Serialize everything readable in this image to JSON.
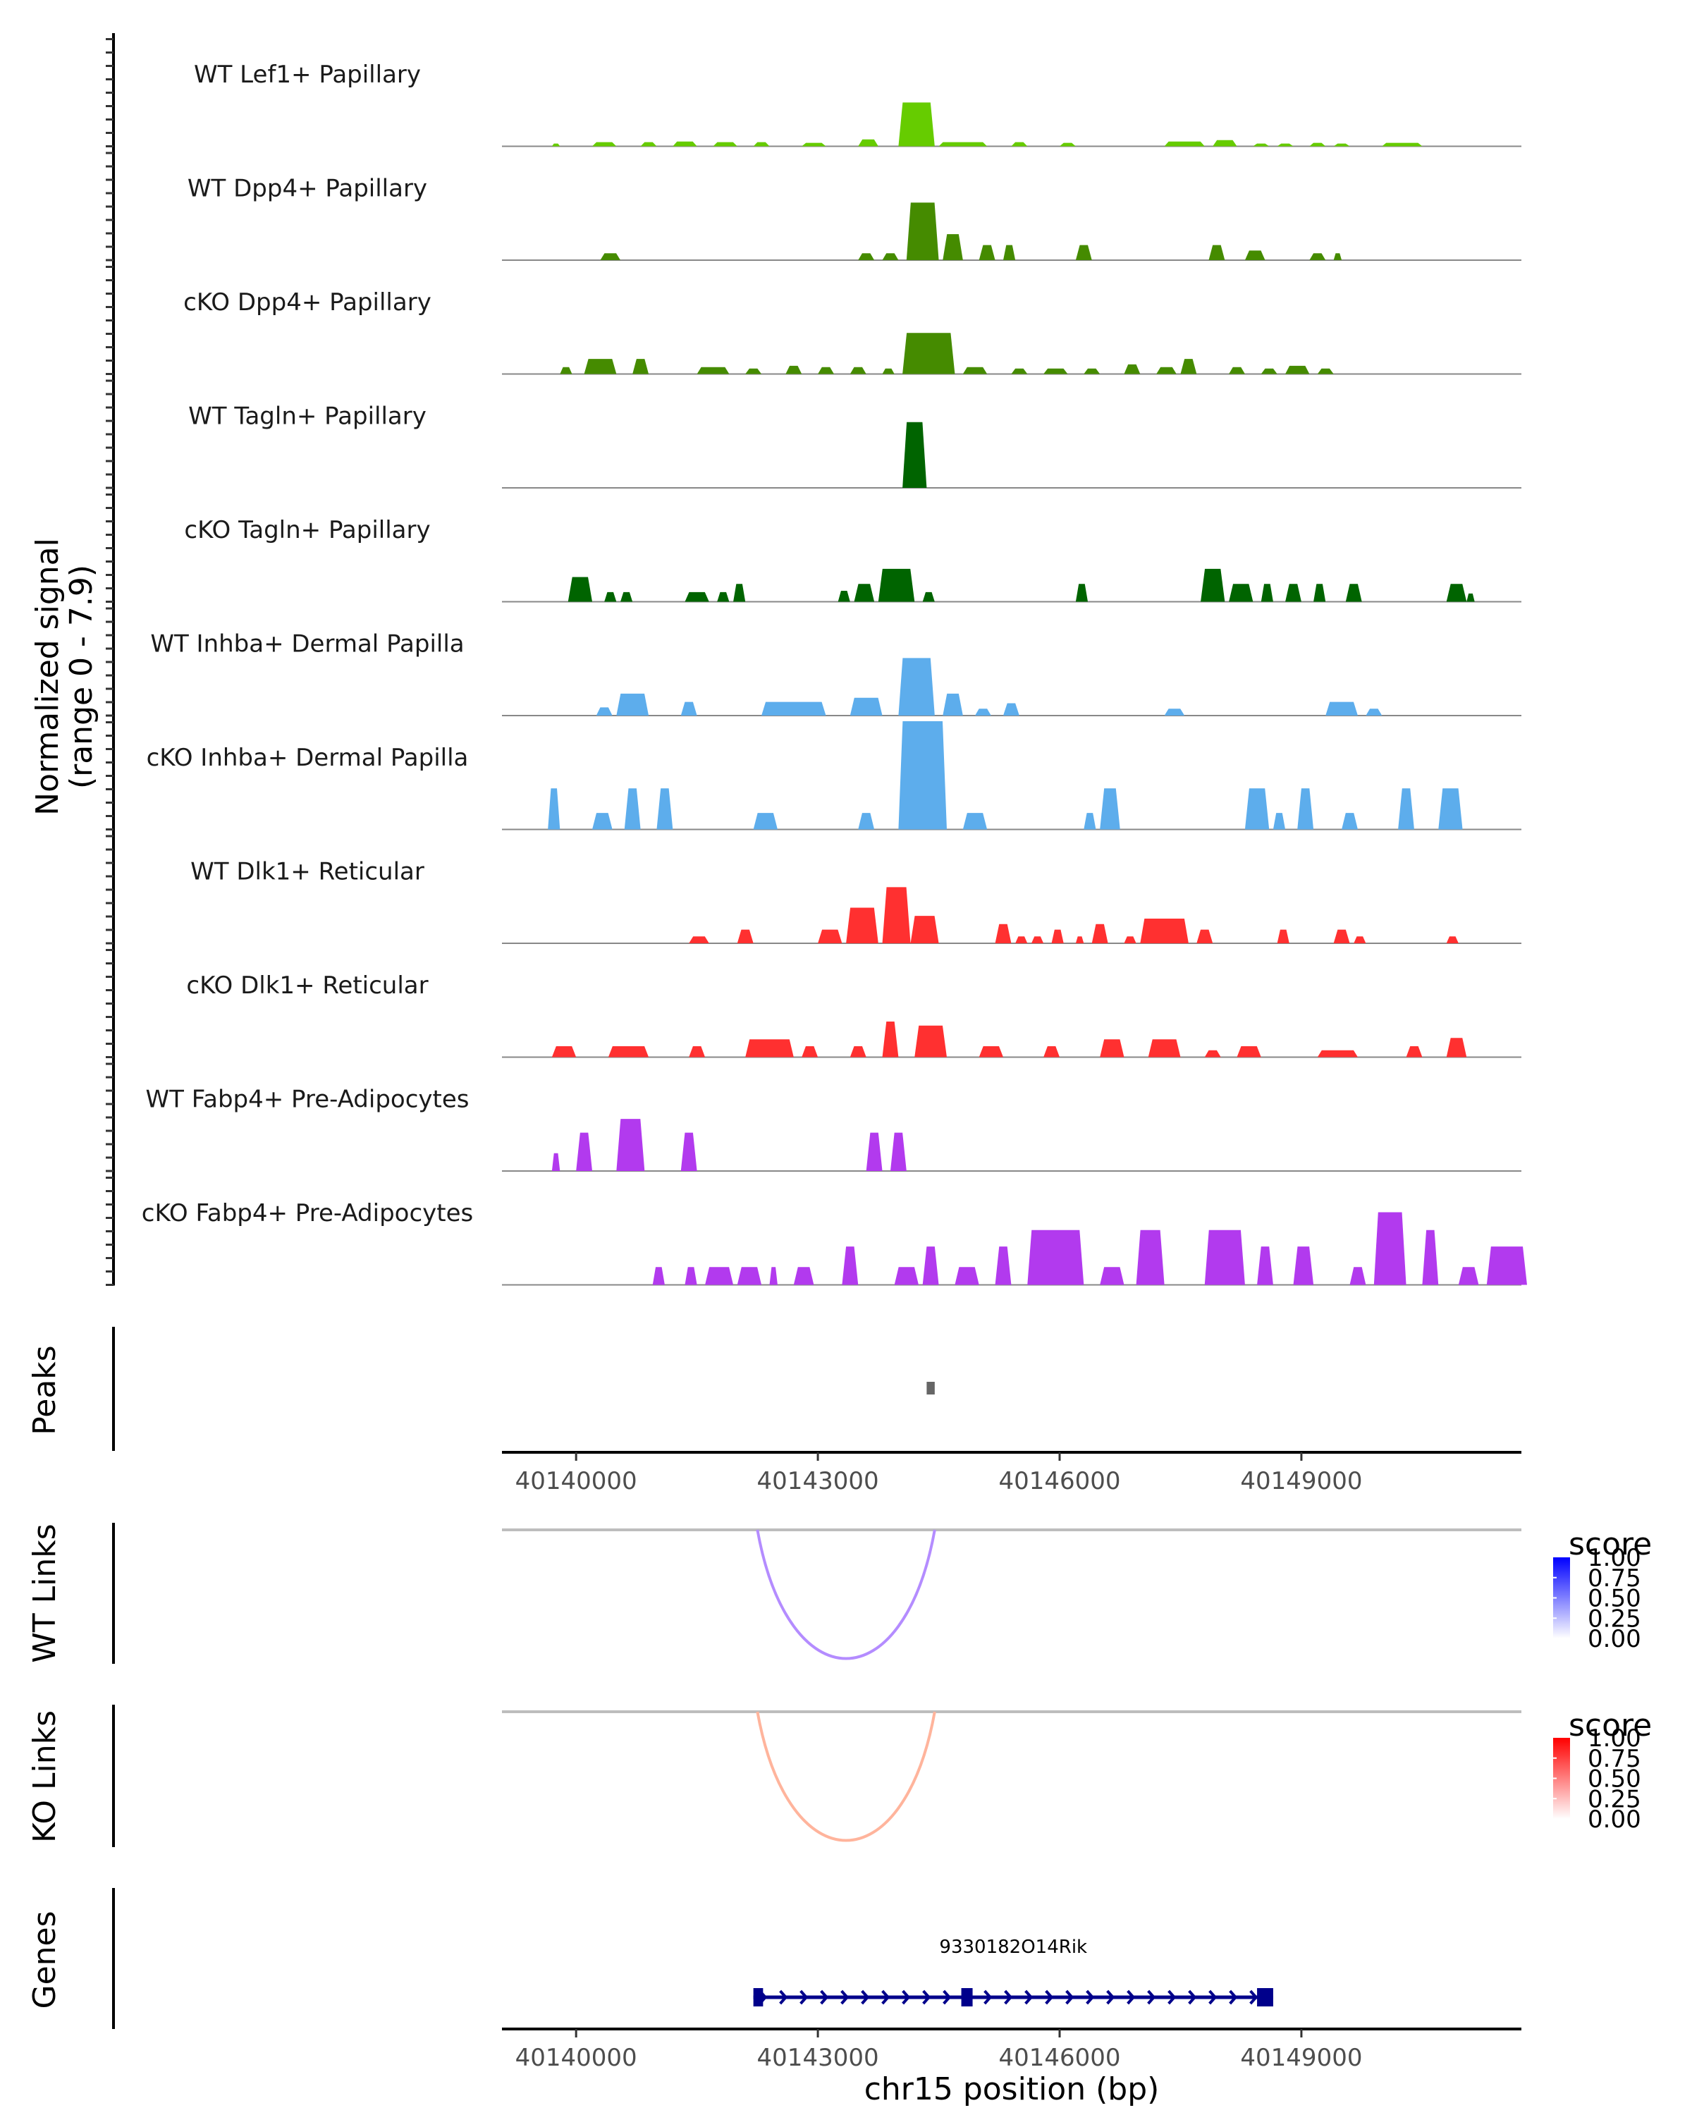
{
  "chart_data": {
    "type": "area",
    "title": "",
    "region": {
      "chromosome": "chr15",
      "xlim": [
        40139080,
        40151730
      ]
    },
    "signal_panel": {
      "ylabel_line1": "Normalized signal",
      "ylabel_line2": "(range 0 - 7.9)",
      "ylim": [
        0,
        7.9
      ],
      "tracks": [
        {
          "label": "WT Lef1+ Papillary",
          "color": "#66CC00",
          "peaks": [
            [
              40139700,
              40139800,
              0.2
            ],
            [
              40140200,
              40140500,
              0.3
            ],
            [
              40140800,
              40141000,
              0.3
            ],
            [
              40141200,
              40141500,
              0.35
            ],
            [
              40141700,
              40142000,
              0.3
            ],
            [
              40142200,
              40142400,
              0.3
            ],
            [
              40142800,
              40143100,
              0.25
            ],
            [
              40143500,
              40143750,
              0.5
            ],
            [
              40144000,
              40144450,
              3.2
            ],
            [
              40144500,
              40145100,
              0.3
            ],
            [
              40145400,
              40145600,
              0.3
            ],
            [
              40146000,
              40146200,
              0.25
            ],
            [
              40147300,
              40147800,
              0.35
            ],
            [
              40147900,
              40148200,
              0.45
            ],
            [
              40148400,
              40148600,
              0.2
            ],
            [
              40148700,
              40148900,
              0.2
            ],
            [
              40149100,
              40149300,
              0.25
            ],
            [
              40149400,
              40149600,
              0.2
            ],
            [
              40150000,
              40150500,
              0.25
            ]
          ]
        },
        {
          "label": "WT Dpp4+ Papillary",
          "color": "#458B00",
          "peaks": [
            [
              40140300,
              40140550,
              0.5
            ],
            [
              40143500,
              40143700,
              0.5
            ],
            [
              40143800,
              40144000,
              0.5
            ],
            [
              40144100,
              40144500,
              4.2
            ],
            [
              40144550,
              40144800,
              1.9
            ],
            [
              40145000,
              40145200,
              1.1
            ],
            [
              40145300,
              40145450,
              1.1
            ],
            [
              40146200,
              40146400,
              1.1
            ],
            [
              40147850,
              40148050,
              1.1
            ],
            [
              40148300,
              40148550,
              0.7
            ],
            [
              40149100,
              40149300,
              0.5
            ],
            [
              40149400,
              40149500,
              0.5
            ]
          ]
        },
        {
          "label": "cKO Dpp4+ Papillary",
          "color": "#458B00",
          "peaks": [
            [
              40139800,
              40139950,
              0.5
            ],
            [
              40140100,
              40140500,
              1.1
            ],
            [
              40140700,
              40140900,
              1.1
            ],
            [
              40141500,
              40141900,
              0.5
            ],
            [
              40142100,
              40142300,
              0.4
            ],
            [
              40142600,
              40142800,
              0.6
            ],
            [
              40143000,
              40143200,
              0.5
            ],
            [
              40143400,
              40143600,
              0.5
            ],
            [
              40143800,
              40143950,
              0.4
            ],
            [
              40144050,
              40144700,
              3.0
            ],
            [
              40144800,
              40145100,
              0.5
            ],
            [
              40145400,
              40145600,
              0.4
            ],
            [
              40145800,
              40146100,
              0.4
            ],
            [
              40146300,
              40146500,
              0.4
            ],
            [
              40146800,
              40147000,
              0.7
            ],
            [
              40147200,
              40147450,
              0.5
            ],
            [
              40147500,
              40147700,
              1.1
            ],
            [
              40148100,
              40148300,
              0.5
            ],
            [
              40148500,
              40148700,
              0.4
            ],
            [
              40148800,
              40149100,
              0.6
            ],
            [
              40149200,
              40149400,
              0.4
            ]
          ]
        },
        {
          "label": "WT Tagln+ Papillary",
          "color": "#006400",
          "peaks": [
            [
              40144050,
              40144350,
              4.8
            ]
          ]
        },
        {
          "label": "cKO Tagln+ Papillary",
          "color": "#006400",
          "peaks": [
            [
              40139900,
              40140200,
              1.8
            ],
            [
              40140350,
              40140500,
              0.7
            ],
            [
              40140550,
              40140700,
              0.7
            ],
            [
              40141350,
              40141650,
              0.7
            ],
            [
              40141750,
              40141900,
              0.7
            ],
            [
              40141950,
              40142100,
              1.3
            ],
            [
              40143250,
              40143400,
              0.8
            ],
            [
              40143450,
              40143700,
              1.3
            ],
            [
              40143750,
              40144200,
              2.4
            ],
            [
              40144300,
              40144450,
              0.7
            ],
            [
              40146200,
              40146350,
              1.3
            ],
            [
              40147750,
              40148050,
              2.4
            ],
            [
              40148100,
              40148400,
              1.3
            ],
            [
              40148500,
              40148650,
              1.3
            ],
            [
              40148800,
              40149000,
              1.3
            ],
            [
              40149150,
              40149300,
              1.3
            ],
            [
              40149550,
              40149750,
              1.3
            ],
            [
              40150800,
              40151050,
              1.3
            ],
            [
              40151050,
              40151150,
              0.6
            ]
          ]
        },
        {
          "label": "WT Inhba+ Dermal Papilla",
          "color": "#5DADEC",
          "peaks": [
            [
              40140250,
              40140450,
              0.6
            ],
            [
              40140500,
              40140900,
              1.6
            ],
            [
              40141300,
              40141500,
              1.0
            ],
            [
              40142300,
              40143100,
              1.0
            ],
            [
              40143400,
              40143800,
              1.3
            ],
            [
              40144000,
              40144450,
              4.2
            ],
            [
              40144550,
              40144800,
              1.6
            ],
            [
              40144950,
              40145150,
              0.5
            ],
            [
              40145300,
              40145500,
              0.9
            ],
            [
              40147300,
              40147550,
              0.5
            ],
            [
              40149300,
              40149700,
              1.0
            ],
            [
              40149800,
              40150000,
              0.5
            ]
          ]
        },
        {
          "label": "cKO Inhba+ Dermal Papilla",
          "color": "#5DADEC",
          "peaks": [
            [
              40139650,
              40139800,
              3.0
            ],
            [
              40140200,
              40140450,
              1.2
            ],
            [
              40140600,
              40140800,
              3.0
            ],
            [
              40141000,
              40141200,
              3.0
            ],
            [
              40142200,
              40142500,
              1.2
            ],
            [
              40143500,
              40143700,
              1.2
            ],
            [
              40144000,
              40144600,
              7.9
            ],
            [
              40144800,
              40145100,
              1.2
            ],
            [
              40146300,
              40146450,
              1.2
            ],
            [
              40146500,
              40146750,
              3.0
            ],
            [
              40148300,
              40148600,
              3.0
            ],
            [
              40148650,
              40148800,
              1.2
            ],
            [
              40148950,
              40149150,
              3.0
            ],
            [
              40149500,
              40149700,
              1.2
            ],
            [
              40150200,
              40150400,
              3.0
            ],
            [
              40150700,
              40151000,
              3.0
            ]
          ]
        },
        {
          "label": "WT Dlk1+ Reticular",
          "color": "#FF3030",
          "peaks": [
            [
              40141400,
              40141650,
              0.5
            ],
            [
              40142000,
              40142200,
              1.0
            ],
            [
              40143000,
              40143300,
              1.0
            ],
            [
              40143350,
              40143750,
              2.6
            ],
            [
              40143800,
              40144150,
              4.1
            ],
            [
              40144150,
              40144500,
              2.0
            ],
            [
              40145200,
              40145400,
              1.4
            ],
            [
              40145450,
              40145600,
              0.5
            ],
            [
              40145650,
              40145800,
              0.5
            ],
            [
              40145900,
              40146050,
              1.0
            ],
            [
              40146200,
              40146300,
              0.5
            ],
            [
              40146400,
              40146600,
              1.4
            ],
            [
              40146800,
              40146950,
              0.5
            ],
            [
              40147000,
              40147600,
              1.8
            ],
            [
              40147700,
              40147900,
              1.0
            ],
            [
              40148700,
              40148850,
              1.0
            ],
            [
              40149400,
              40149600,
              1.0
            ],
            [
              40149650,
              40149800,
              0.5
            ],
            [
              40150800,
              40150950,
              0.5
            ]
          ]
        },
        {
          "label": "cKO Dlk1+ Reticular",
          "color": "#FF3030",
          "peaks": [
            [
              40139700,
              40140000,
              0.8
            ],
            [
              40140400,
              40140900,
              0.8
            ],
            [
              40141400,
              40141600,
              0.8
            ],
            [
              40142100,
              40142700,
              1.3
            ],
            [
              40142800,
              40143000,
              0.8
            ],
            [
              40143400,
              40143600,
              0.8
            ],
            [
              40143800,
              40144000,
              2.6
            ],
            [
              40144200,
              40144600,
              2.3
            ],
            [
              40145000,
              40145300,
              0.8
            ],
            [
              40145800,
              40146000,
              0.8
            ],
            [
              40146500,
              40146800,
              1.3
            ],
            [
              40147100,
              40147500,
              1.3
            ],
            [
              40147800,
              40148000,
              0.5
            ],
            [
              40148200,
              40148500,
              0.8
            ],
            [
              40149200,
              40149700,
              0.5
            ],
            [
              40150300,
              40150500,
              0.8
            ],
            [
              40150800,
              40151050,
              1.4
            ]
          ]
        },
        {
          "label": "WT Fabp4+ Pre-Adipocytes",
          "color": "#B23AEE",
          "peaks": [
            [
              40139700,
              40139800,
              1.3
            ],
            [
              40140000,
              40140200,
              2.8
            ],
            [
              40140500,
              40140850,
              3.8
            ],
            [
              40141300,
              40141500,
              2.8
            ],
            [
              40143600,
              40143800,
              2.8
            ],
            [
              40143900,
              40144100,
              2.8
            ]
          ]
        },
        {
          "label": "cKO Fabp4+ Pre-Adipocytes",
          "color": "#B23AEE",
          "peaks": [
            [
              40140950,
              40141100,
              1.3
            ],
            [
              40141350,
              40141500,
              1.3
            ],
            [
              40141600,
              40141950,
              1.3
            ],
            [
              40142000,
              40142300,
              1.3
            ],
            [
              40142400,
              40142500,
              1.3
            ],
            [
              40142700,
              40142950,
              1.3
            ],
            [
              40143300,
              40143500,
              2.8
            ],
            [
              40143950,
              40144250,
              1.3
            ],
            [
              40144300,
              40144500,
              2.8
            ],
            [
              40144700,
              40145000,
              1.3
            ],
            [
              40145200,
              40145400,
              2.8
            ],
            [
              40145600,
              40146300,
              4.0
            ],
            [
              40146500,
              40146800,
              1.3
            ],
            [
              40146950,
              40147300,
              4.0
            ],
            [
              40147800,
              40148300,
              4.0
            ],
            [
              40148450,
              40148650,
              2.8
            ],
            [
              40148900,
              40149150,
              2.8
            ],
            [
              40149600,
              40149800,
              1.3
            ],
            [
              40149900,
              40150300,
              5.3
            ],
            [
              40150500,
              40150700,
              4.0
            ],
            [
              40150950,
              40151200,
              1.3
            ],
            [
              40151300,
              40151800,
              2.8
            ]
          ]
        }
      ]
    },
    "peaks_panel": {
      "label": "Peaks",
      "peaks": [
        [
          40144350,
          40144450
        ]
      ],
      "color": "#666666"
    },
    "x_axis_top": {
      "ticks": [
        40140000,
        40143000,
        40146000,
        40149000
      ],
      "tick_labels": [
        "40140000",
        "40143000",
        "40146000",
        "40149000"
      ]
    },
    "links_panels": [
      {
        "label": "WT Links",
        "links": [
          {
            "start": 40142250,
            "end": 40144450,
            "score": 0.35
          }
        ],
        "legend": {
          "title": "score",
          "ticks": [
            "1.00",
            "0.75",
            "0.50",
            "0.25",
            "0.00"
          ],
          "low_color": "#FFFFFF",
          "high_color": "#0000FF",
          "arc_color": "#B48CFF"
        }
      },
      {
        "label": "KO Links",
        "links": [
          {
            "start": 40142250,
            "end": 40144450,
            "score": 0.35
          }
        ],
        "legend": {
          "title": "score",
          "ticks": [
            "1.00",
            "0.75",
            "0.50",
            "0.25",
            "0.00"
          ],
          "low_color": "#FFFFFF",
          "high_color": "#FF0000",
          "arc_color": "#FFB49C"
        }
      }
    ],
    "genes_panel": {
      "label": "Genes",
      "genes": [
        {
          "name": "9330182O14Rik",
          "start": 40142200,
          "end": 40148650,
          "strand": "+",
          "exons": [
            [
              40142200,
              40142320
            ],
            [
              40144780,
              40144920
            ],
            [
              40148450,
              40148650
            ]
          ],
          "color": "#00008B"
        }
      ]
    },
    "x_axis_bottom": {
      "ticks": [
        40140000,
        40143000,
        40146000,
        40149000
      ],
      "tick_labels": [
        "40140000",
        "40143000",
        "40146000",
        "40149000"
      ]
    },
    "xlabel": "chr15 position (bp)"
  }
}
